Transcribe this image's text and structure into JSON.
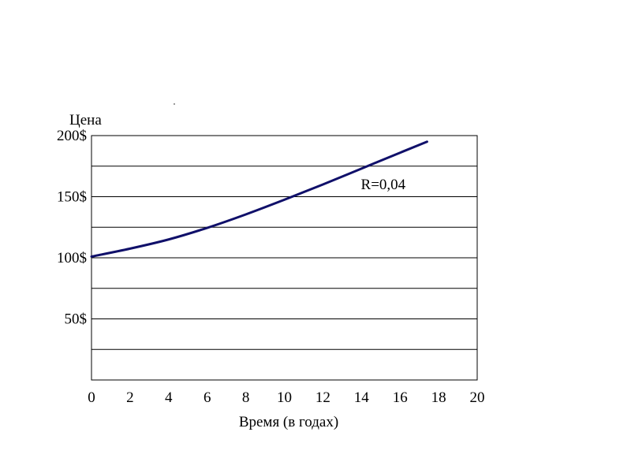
{
  "chart_data": {
    "type": "line",
    "title": "",
    "xlabel": "Время (в годах)",
    "ylabel": "Цена",
    "xlim": [
      0,
      20
    ],
    "ylim": [
      0,
      200
    ],
    "x_ticks": [
      {
        "value": 0,
        "label": "0"
      },
      {
        "value": 2,
        "label": "2"
      },
      {
        "value": 4,
        "label": "4"
      },
      {
        "value": 6,
        "label": "6"
      },
      {
        "value": 8,
        "label": "8"
      },
      {
        "value": 10,
        "label": "10"
      },
      {
        "value": 12,
        "label": "12"
      },
      {
        "value": 14,
        "label": "14"
      },
      {
        "value": 16,
        "label": "16"
      },
      {
        "value": 18,
        "label": "18"
      },
      {
        "value": 20,
        "label": "20"
      }
    ],
    "y_ticks": [
      {
        "value": 50,
        "label": "50$"
      },
      {
        "value": 100,
        "label": "100$"
      },
      {
        "value": 150,
        "label": "150$"
      },
      {
        "value": 200,
        "label": "200$"
      }
    ],
    "gridlines_y": [
      25,
      50,
      75,
      100,
      125,
      150,
      175,
      200
    ],
    "grid": "horizontal",
    "series": [
      {
        "color": "#10106a",
        "x": [
          0,
          2,
          4,
          6,
          8,
          10,
          12,
          14,
          16,
          17.4
        ],
        "values": [
          101,
          107.5,
          115,
          124.5,
          135.5,
          147.5,
          160,
          173,
          186,
          195
        ]
      }
    ],
    "annotations": [
      {
        "text": "R=0,04",
        "x": 14.5,
        "y": 160
      }
    ]
  }
}
